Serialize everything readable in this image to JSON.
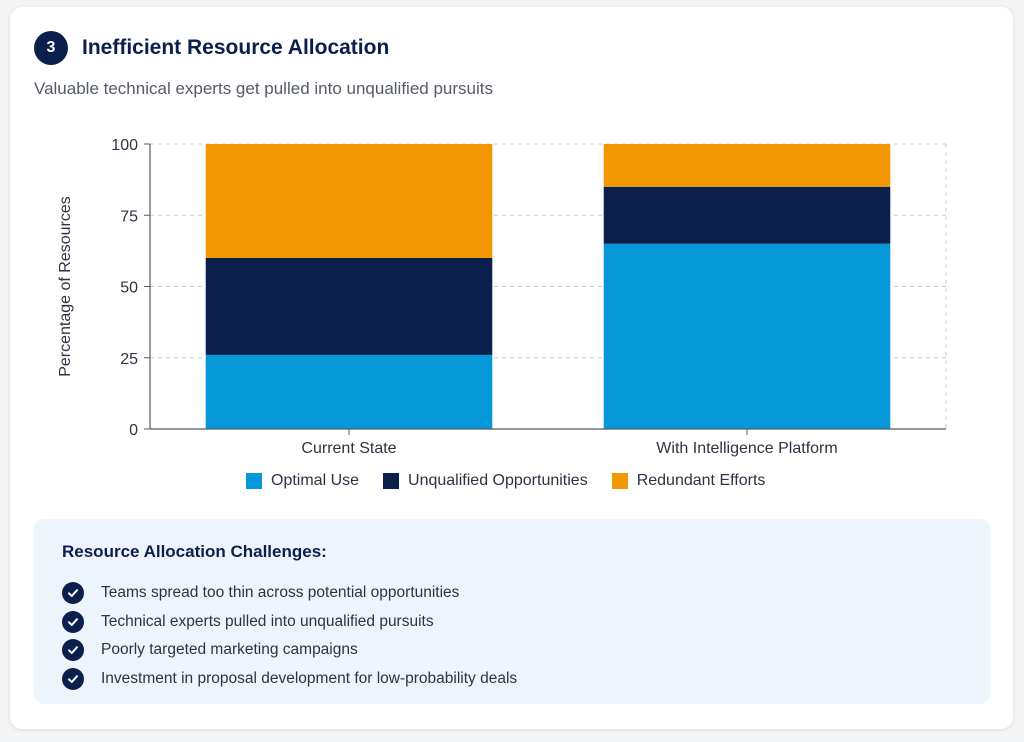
{
  "header": {
    "number": "3",
    "title": "Inefficient Resource Allocation",
    "subtitle": "Valuable technical experts get pulled into unqualified pursuits"
  },
  "chart_data": {
    "type": "bar",
    "stacked": true,
    "categories": [
      "Current State",
      "With Intelligence Platform"
    ],
    "series": [
      {
        "name": "Optimal Use",
        "values": [
          26,
          65
        ],
        "color": "#0597d8"
      },
      {
        "name": "Unqualified Opportunities",
        "values": [
          34,
          20
        ],
        "color": "#0b1f4d"
      },
      {
        "name": "Redundant Efforts",
        "values": [
          40,
          15
        ],
        "color": "#f29602"
      }
    ],
    "ylabel": "Percentage of Resources",
    "ylim": [
      0,
      100
    ],
    "yticks": [
      0,
      25,
      50,
      75,
      100
    ],
    "grid": true,
    "legend": "bottom"
  },
  "challenges": {
    "title": "Resource Allocation Challenges:",
    "items": [
      "Teams spread too thin across potential opportunities",
      "Technical experts pulled into unqualified pursuits",
      "Poorly targeted marketing campaigns",
      "Investment in proposal development for low-probability deals"
    ]
  },
  "icons": {
    "check": "check-circle-icon"
  }
}
